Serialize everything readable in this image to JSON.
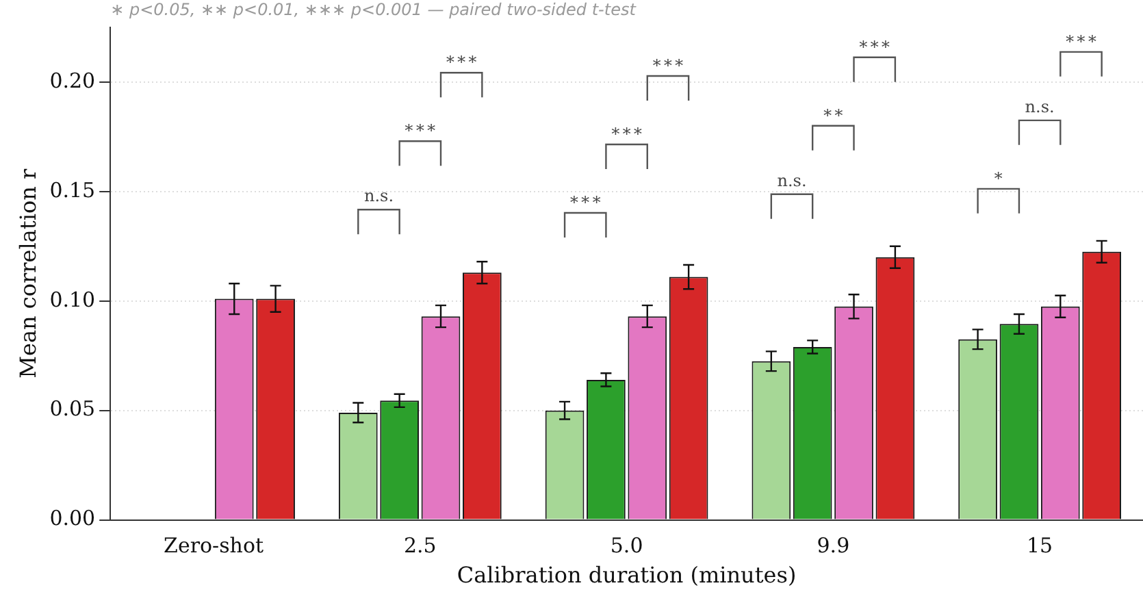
{
  "chart_data": {
    "type": "bar",
    "xlabel": "Calibration duration (minutes)",
    "ylabel": "Mean correlation r",
    "categories": [
      "Zero-shot",
      "2.5",
      "5.0",
      "9.9",
      "15"
    ],
    "series": [
      {
        "color": "#a6d796",
        "values": [
          null,
          0.049,
          0.05,
          0.0725,
          0.0825
        ],
        "errors": [
          null,
          0.0045,
          0.004,
          0.0045,
          0.0045
        ]
      },
      {
        "color": "#2ca02c",
        "values": [
          null,
          0.0545,
          0.064,
          0.079,
          0.0895
        ],
        "errors": [
          null,
          0.003,
          0.003,
          0.003,
          0.0045
        ]
      },
      {
        "color": "#e377c2",
        "values": [
          0.101,
          0.093,
          0.093,
          0.0975,
          0.0975
        ],
        "errors": [
          0.007,
          0.005,
          0.005,
          0.0055,
          0.005
        ]
      },
      {
        "color": "#d62728",
        "values": [
          0.101,
          0.113,
          0.111,
          0.12,
          0.1225
        ],
        "errors": [
          0.006,
          0.005,
          0.0055,
          0.005,
          0.005
        ]
      }
    ],
    "ylim": [
      0,
      0.225
    ],
    "yticks": [
      {
        "value": 0,
        "label": "0.00"
      },
      {
        "value": 0.05,
        "label": "0.05"
      },
      {
        "value": 0.1,
        "label": "0.10"
      },
      {
        "value": 0.15,
        "label": "0.15"
      },
      {
        "value": 0.2,
        "label": "0.20"
      }
    ],
    "grid": "y",
    "legend": false,
    "annotations": [
      "∗ p<0.05, ∗∗ p<0.01, ∗∗∗ p<0.001 — paired two-sided t-test",
      "n.s.",
      "∗∗∗",
      "∗∗∗",
      "∗∗∗",
      "∗∗∗",
      "∗∗∗",
      "n.s.",
      "∗∗",
      "∗∗∗",
      "∗",
      "n.s.",
      "∗∗∗"
    ]
  }
}
